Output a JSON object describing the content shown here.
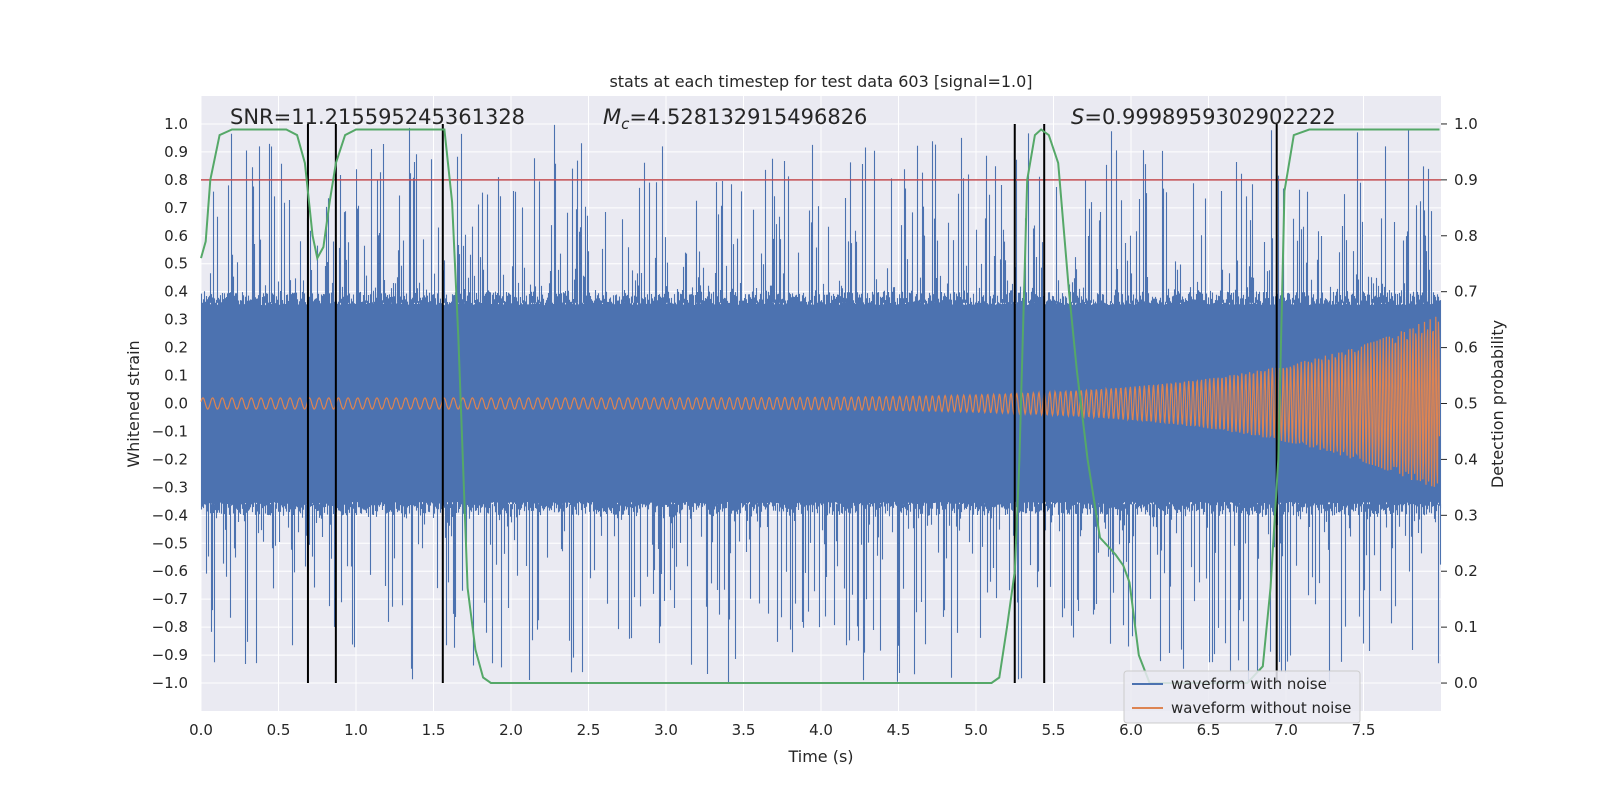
{
  "chart_data": {
    "type": "line",
    "title": "stats at each timestep for test data 603 [signal=1.0]",
    "xlabel": "Time (s)",
    "ylabel": "Whitened strain",
    "ylabel_right": "Detection probability",
    "xlim": [
      0.0,
      8.0
    ],
    "ylim": [
      -1.1,
      1.1
    ],
    "ylim_right": [
      -0.05,
      1.05
    ],
    "x_ticks": [
      0.0,
      0.5,
      1.0,
      1.5,
      2.0,
      2.5,
      3.0,
      3.5,
      4.0,
      4.5,
      5.0,
      5.5,
      6.0,
      6.5,
      7.0,
      7.5
    ],
    "x_tick_labels": [
      "0.0",
      "0.5",
      "1.0",
      "1.5",
      "2.0",
      "2.5",
      "3.0",
      "3.5",
      "4.0",
      "4.5",
      "5.0",
      "5.5",
      "6.0",
      "6.5",
      "7.0",
      "7.5"
    ],
    "y_ticks": [
      1.0,
      0.9,
      0.8,
      0.7,
      0.6,
      0.5,
      0.4,
      0.3,
      0.2,
      0.1,
      0.0,
      -0.1,
      -0.2,
      -0.3,
      -0.4,
      -0.5,
      -0.6,
      -0.7,
      -0.8,
      -0.9,
      -1.0
    ],
    "y_tick_labels": [
      "1.0",
      "0.9",
      "0.8",
      "0.7",
      "0.6",
      "0.5",
      "0.4",
      "0.3",
      "0.2",
      "0.1",
      "0.0",
      "−0.1",
      "−0.2",
      "−0.3",
      "−0.4",
      "−0.5",
      "−0.6",
      "−0.7",
      "−0.8",
      "−0.9",
      "−1.0"
    ],
    "y_right_ticks": [
      1.0,
      0.9,
      0.8,
      0.7,
      0.6,
      0.5,
      0.4,
      0.3,
      0.2,
      0.1,
      0.0
    ],
    "y_right_tick_labels": [
      "1.0",
      "0.9",
      "0.8",
      "0.7",
      "0.6",
      "0.5",
      "0.4",
      "0.3",
      "0.2",
      "0.1",
      "0.0"
    ],
    "annotations": {
      "snr": "SNR=11.215595245361328",
      "mc_symbol": "M",
      "mc_sub": "c",
      "mc_value": "=4.528132915496826",
      "s_symbol": "S",
      "s_value": "=0.9998959302902222"
    },
    "threshold": {
      "value": 0.8,
      "color": "#c44e52"
    },
    "vertical_markers": [
      0.69,
      0.87,
      1.56,
      5.25,
      5.44,
      6.94
    ],
    "series": [
      {
        "name": "waveform with noise",
        "color": "#4c72b0",
        "description": "noisy whitened strain, approx. amplitude band ±0.4 with spikes up to ±1.0",
        "envelope": {
          "baseline": 0.4,
          "max_spike": 1.0
        }
      },
      {
        "name": "waveform without noise",
        "color": "#dd8452",
        "description": "inspiral chirp, amplitude grows from ~0.02 to ~0.32 at 8 s",
        "amplitude_start": 0.02,
        "amplitude_end": 0.32
      },
      {
        "name": "detection probability",
        "color": "#55a868",
        "axis": "right",
        "x": [
          0.0,
          0.03,
          0.06,
          0.12,
          0.2,
          0.3,
          0.45,
          0.55,
          0.62,
          0.67,
          0.72,
          0.75,
          0.79,
          0.83,
          0.87,
          0.93,
          1.0,
          1.1,
          1.3,
          1.47,
          1.57,
          1.62,
          1.66,
          1.72,
          1.77,
          1.82,
          1.87,
          1.95,
          2.2,
          2.8,
          3.5,
          4.0,
          4.5,
          4.9,
          5.1,
          5.15,
          5.2,
          5.25,
          5.28,
          5.33,
          5.38,
          5.42,
          5.47,
          5.53,
          5.6,
          5.65,
          5.72,
          5.8,
          5.9,
          5.95,
          5.99,
          6.05,
          6.12,
          6.2,
          6.35,
          6.55,
          6.75,
          6.85,
          6.9,
          6.95,
          6.99,
          7.05,
          7.15,
          7.3,
          7.5,
          7.7,
          7.9,
          7.99
        ],
        "y": [
          0.76,
          0.79,
          0.9,
          0.98,
          0.99,
          0.99,
          0.99,
          0.99,
          0.98,
          0.93,
          0.8,
          0.76,
          0.78,
          0.86,
          0.93,
          0.98,
          0.99,
          0.99,
          0.99,
          0.99,
          0.99,
          0.86,
          0.62,
          0.17,
          0.06,
          0.01,
          0.0,
          0.0,
          0.0,
          0.0,
          0.0,
          0.0,
          0.0,
          0.0,
          0.0,
          0.01,
          0.1,
          0.2,
          0.4,
          0.9,
          0.98,
          0.99,
          0.98,
          0.93,
          0.7,
          0.56,
          0.4,
          0.26,
          0.23,
          0.21,
          0.18,
          0.05,
          0.0,
          0.0,
          0.0,
          0.0,
          0.0,
          0.03,
          0.17,
          0.4,
          0.88,
          0.98,
          0.99,
          0.99,
          0.99,
          0.99,
          0.99,
          0.99
        ]
      }
    ],
    "legend": {
      "position": "lower-right",
      "entries": [
        {
          "label": "waveform with noise",
          "color": "#4c72b0"
        },
        {
          "label": "waveform without noise",
          "color": "#dd8452"
        }
      ]
    },
    "grid": true
  }
}
